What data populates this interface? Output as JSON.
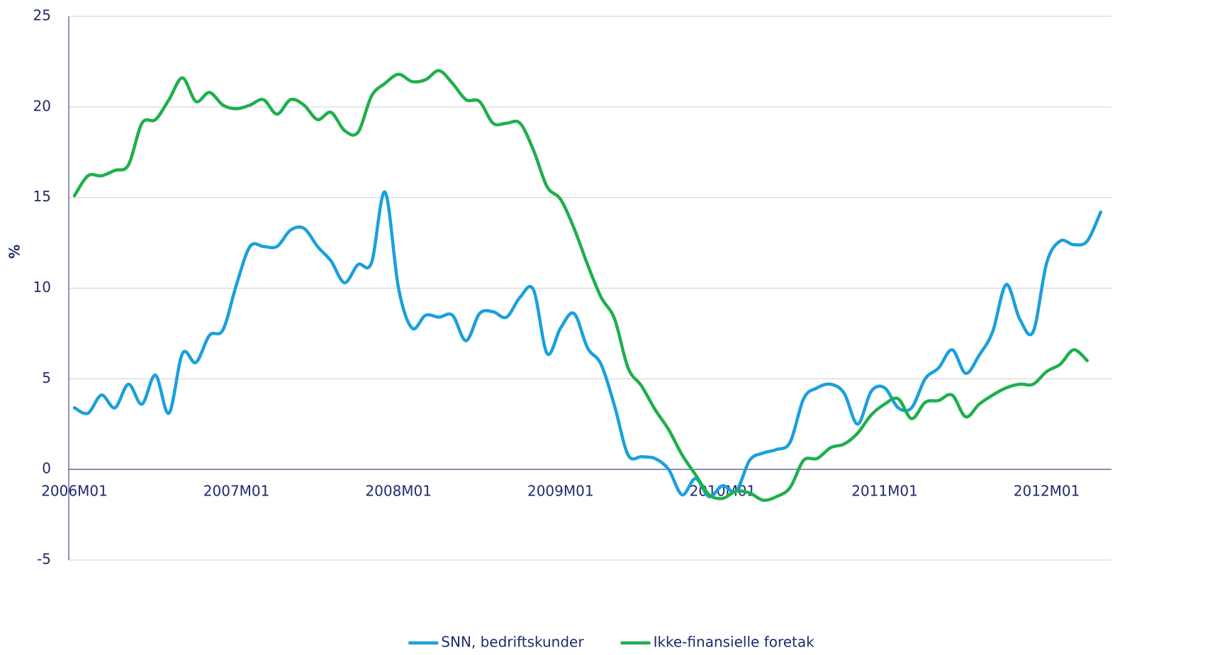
{
  "chart_data": {
    "type": "line",
    "y_label": "%",
    "categories": [
      "2006M01",
      null,
      null,
      null,
      null,
      null,
      null,
      null,
      null,
      null,
      null,
      null,
      "2007M01",
      null,
      null,
      null,
      null,
      null,
      null,
      null,
      null,
      null,
      null,
      null,
      "2008M01",
      null,
      null,
      null,
      null,
      null,
      null,
      null,
      null,
      null,
      null,
      null,
      "2009M01",
      null,
      null,
      null,
      null,
      null,
      null,
      null,
      null,
      null,
      null,
      null,
      "2010M01",
      null,
      null,
      null,
      null,
      null,
      null,
      null,
      null,
      null,
      null,
      null,
      "2011M01",
      null,
      null,
      null,
      null,
      null,
      null,
      null,
      null,
      null,
      null,
      null,
      "2012M01",
      null,
      null,
      null,
      null
    ],
    "series": [
      {
        "name": "SNN, bedriftskunder",
        "color": "#1aa0dc",
        "values": [
          3.4,
          3.1,
          4.1,
          3.4,
          4.7,
          3.6,
          5.2,
          3.1,
          6.4,
          5.9,
          7.4,
          7.7,
          10.2,
          12.3,
          12.3,
          12.3,
          13.2,
          13.3,
          12.3,
          11.5,
          10.3,
          11.3,
          11.4,
          15.3,
          10.0,
          7.8,
          8.5,
          8.4,
          8.5,
          7.1,
          8.6,
          8.7,
          8.4,
          9.5,
          9.9,
          6.4,
          7.8,
          8.6,
          6.7,
          5.8,
          3.5,
          0.8,
          0.7,
          0.6,
          0.0,
          -1.4,
          -0.5,
          -1.5,
          -0.9,
          -1.2,
          0.5,
          0.9,
          1.1,
          1.5,
          3.9,
          4.5,
          4.7,
          4.2,
          2.5,
          4.3,
          4.5,
          3.4,
          3.4,
          5.0,
          5.6,
          6.6,
          5.3,
          6.3,
          7.6,
          10.2,
          8.3,
          7.6,
          11.4,
          12.6,
          12.4,
          12.6,
          14.2
        ]
      },
      {
        "name": "Ikke-finansielle foretak",
        "color": "#1db04c",
        "values": [
          15.1,
          16.2,
          16.2,
          16.5,
          16.8,
          19.1,
          19.3,
          20.4,
          21.6,
          20.3,
          20.8,
          20.1,
          19.9,
          20.1,
          20.4,
          19.6,
          20.4,
          20.1,
          19.3,
          19.7,
          18.7,
          18.6,
          20.6,
          21.3,
          21.8,
          21.4,
          21.5,
          22.0,
          21.3,
          20.4,
          20.3,
          19.1,
          19.1,
          19.1,
          17.6,
          15.6,
          14.9,
          13.3,
          11.3,
          9.5,
          8.3,
          5.6,
          4.6,
          3.3,
          2.2,
          0.8,
          -0.3,
          -1.4,
          -1.6,
          -1.2,
          -1.3,
          -1.7,
          -1.5,
          -1.0,
          0.5,
          0.6,
          1.2,
          1.4,
          2.0,
          3.0,
          3.6,
          3.9,
          2.8,
          3.7,
          3.8,
          4.1,
          2.9,
          3.6,
          4.1,
          4.5,
          4.7,
          4.7,
          5.4,
          5.8,
          6.6,
          6.0,
          null
        ]
      }
    ],
    "ylim": [
      -5,
      25
    ],
    "yticks": [
      -5,
      0,
      5,
      10,
      15,
      20,
      25
    ],
    "grid": true
  }
}
